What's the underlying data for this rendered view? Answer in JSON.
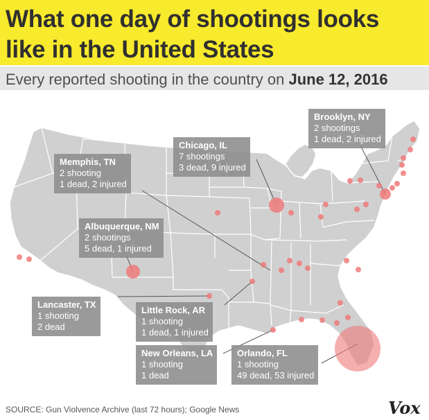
{
  "title": {
    "line1": "What one day of shootings looks",
    "line2": "like in the United States"
  },
  "subtitle": {
    "prefix": "Every reported shooting in the country on ",
    "date": "June 12, 2016"
  },
  "colors": {
    "title_bg": "#f8ea2c",
    "land": "#d0d0d0",
    "border": "#ffffff",
    "dot": "#ee7a7a",
    "label_bg": "#8c8c8c"
  },
  "callouts": {
    "brooklyn": {
      "city": "Brooklyn, NY",
      "line1": "2 shootings",
      "line2": "1 dead, 2 injured"
    },
    "chicago": {
      "city": "Chicago, IL",
      "line1": "7 shootings",
      "line2": "3 dead, 9 injured"
    },
    "memphis": {
      "city": "Memphis, TN",
      "line1": "2 shooting",
      "line2": "1 dead, 2 injured"
    },
    "albuquerque": {
      "city": "Albuquerque, NM",
      "line1": "2 shootings",
      "line2": "5 dead, 1 injured"
    },
    "lancaster": {
      "city": "Lancaster, TX",
      "line1": "1 shooting",
      "line2": "2 dead"
    },
    "littlerock": {
      "city": "Little Rock, AR",
      "line1": "1 shooting",
      "line2": "1 dead, 1 injured"
    },
    "neworleans": {
      "city": "New Orleans, LA",
      "line1": "1 shooting",
      "line2": "1 dead"
    },
    "orlando": {
      "city": "Orlando, FL",
      "line1": "1 shooting",
      "line2": "49 dead, 53 injured"
    }
  },
  "footer": {
    "source": "SOURCE: Gun Violvence Archive (last 72 hours); Google News",
    "logo": "Vox"
  }
}
